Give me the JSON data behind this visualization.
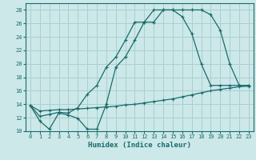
{
  "xlabel": "Humidex (Indice chaleur)",
  "bg_color": "#cce8e8",
  "grid_color": "#aacfcf",
  "line_color": "#1a6b6b",
  "xlim": [
    -0.5,
    23.5
  ],
  "ylim": [
    10,
    29
  ],
  "yticks": [
    10,
    12,
    14,
    16,
    18,
    20,
    22,
    24,
    26,
    28
  ],
  "xticks": [
    0,
    1,
    2,
    3,
    4,
    5,
    6,
    7,
    8,
    9,
    10,
    11,
    12,
    13,
    14,
    15,
    16,
    17,
    18,
    19,
    20,
    21,
    22,
    23
  ],
  "line1_x": [
    0,
    1,
    2,
    3,
    4,
    5,
    6,
    7,
    8,
    9,
    10,
    11,
    12,
    13,
    14,
    15,
    16,
    17,
    18,
    19,
    20,
    21,
    22,
    23
  ],
  "line1_y": [
    13.8,
    11.5,
    10.3,
    12.7,
    12.4,
    11.9,
    10.3,
    10.3,
    14.0,
    19.5,
    21.0,
    23.5,
    26.2,
    26.2,
    28.0,
    28.0,
    28.0,
    28.0,
    28.0,
    27.3,
    25.0,
    20.0,
    16.8,
    16.8
  ],
  "line2_x": [
    0,
    1,
    2,
    3,
    4,
    5,
    6,
    7,
    8,
    9,
    10,
    11,
    12,
    13,
    14,
    15,
    16,
    17,
    18,
    19,
    20,
    21,
    22,
    23
  ],
  "line2_y": [
    13.8,
    13.0,
    13.1,
    13.2,
    13.2,
    13.3,
    13.4,
    13.5,
    13.6,
    13.7,
    13.9,
    14.0,
    14.2,
    14.4,
    14.6,
    14.8,
    15.1,
    15.4,
    15.7,
    16.0,
    16.2,
    16.4,
    16.6,
    16.7
  ],
  "line3_x": [
    0,
    1,
    2,
    3,
    4,
    5,
    6,
    7,
    8,
    9,
    10,
    11,
    12,
    13,
    14,
    15,
    16,
    17,
    18,
    19,
    20,
    21,
    22,
    23
  ],
  "line3_y": [
    13.8,
    12.2,
    12.5,
    12.8,
    12.7,
    13.5,
    15.5,
    16.8,
    19.5,
    21.0,
    23.5,
    26.2,
    26.2,
    28.0,
    28.0,
    28.0,
    27.0,
    24.5,
    20.0,
    16.8,
    16.8,
    16.8,
    16.8,
    16.8
  ]
}
